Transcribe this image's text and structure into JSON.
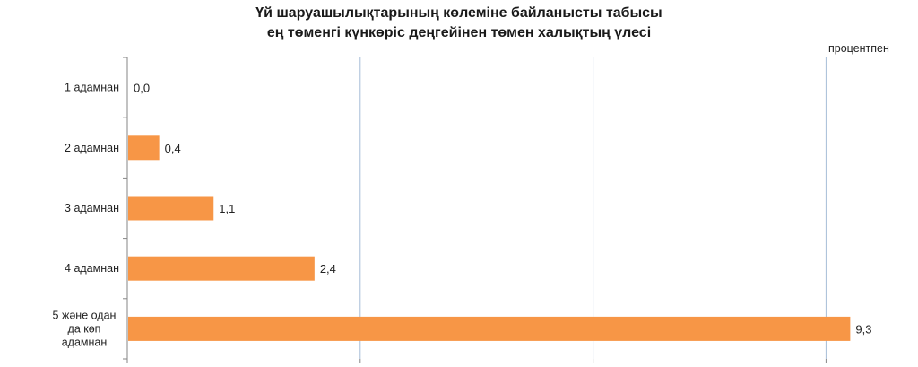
{
  "title_line1": "Үй шаруашылықтарының көлеміне байланысты табысы",
  "title_line2": "ең төменгі күнкөріс деңгейінен төмен халықтың үлесі",
  "unit_label": "процентпен",
  "colors": {
    "bar": "#F79646",
    "grid": "#A6BDD7",
    "axis": "#868686",
    "text": "#222222"
  },
  "chart_data": {
    "type": "bar",
    "orientation": "horizontal",
    "title": "Үй шаруашылықтарының көлеміне байланысты табысы ең төменгі күнкөріс деңгейінен төмен халықтың үлесі",
    "unit": "процентпен",
    "categories": [
      "1 адамнан",
      "2 адамнан",
      "3 адамнан",
      "4 адамнан",
      "5 және одан да көп адамнан"
    ],
    "category_lines": [
      [
        "1 адамнан"
      ],
      [
        "2 адамнан"
      ],
      [
        "3 адамнан"
      ],
      [
        "4 адамнан"
      ],
      [
        "5 және одан",
        "да көп",
        "адамнан"
      ]
    ],
    "values": [
      0.0,
      0.4,
      1.1,
      2.4,
      9.3
    ],
    "value_labels": [
      "0,0",
      "0,4",
      "1,1",
      "2,4",
      "9,3"
    ],
    "xlim": [
      0,
      10
    ],
    "gridlines_at": [
      3,
      6,
      9
    ],
    "grid": true,
    "legend": false
  }
}
